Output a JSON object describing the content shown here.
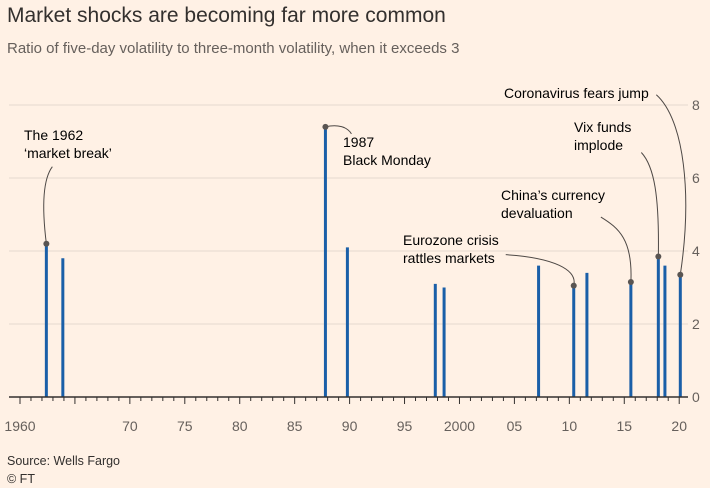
{
  "header": {
    "title": "Market shocks are becoming far more common",
    "subtitle": "Ratio of five-day volatility to three-month volatility, when it exceeds 3"
  },
  "footer": {
    "source": "Source: Wells Fargo",
    "credit": "© FT"
  },
  "colors": {
    "background": "#fff1e5",
    "spike": "#1a5fa8",
    "grid": "#e6d9ce",
    "axis": "#33302e",
    "leader": "#4d4845",
    "dot": "#5a5552"
  },
  "chart_data": {
    "type": "bar",
    "title": "Market shocks are becoming far more common",
    "subtitle": "Ratio of five-day volatility to three-month volatility, when it exceeds 3",
    "xlabel": "",
    "ylabel": "",
    "xlim": [
      1959.0,
      2020.8
    ],
    "ylim": [
      0,
      8
    ],
    "yticks": [
      0,
      2,
      4,
      6,
      8
    ],
    "xticks": [
      {
        "value": 1960,
        "label": "1960"
      },
      {
        "value": 1970,
        "label": "70"
      },
      {
        "value": 1975,
        "label": "75"
      },
      {
        "value": 1980,
        "label": "80"
      },
      {
        "value": 1985,
        "label": "85"
      },
      {
        "value": 1990,
        "label": "90"
      },
      {
        "value": 1995,
        "label": "95"
      },
      {
        "value": 2000,
        "label": "2000"
      },
      {
        "value": 2005,
        "label": "05"
      },
      {
        "value": 2010,
        "label": "10"
      },
      {
        "value": 2015,
        "label": "15"
      },
      {
        "value": 2020,
        "label": "20"
      }
    ],
    "gridlines": "horizontal",
    "series": [
      {
        "name": "Ratio of five-day to three-month volatility",
        "points": [
          {
            "x": 1962.4,
            "y": 4.2
          },
          {
            "x": 1963.9,
            "y": 3.8
          },
          {
            "x": 1987.8,
            "y": 7.4
          },
          {
            "x": 1989.8,
            "y": 4.1
          },
          {
            "x": 1997.8,
            "y": 3.1
          },
          {
            "x": 1998.6,
            "y": 3.0
          },
          {
            "x": 2007.2,
            "y": 3.6
          },
          {
            "x": 2010.4,
            "y": 3.05
          },
          {
            "x": 2011.6,
            "y": 3.4
          },
          {
            "x": 2015.6,
            "y": 3.15
          },
          {
            "x": 2018.1,
            "y": 3.85
          },
          {
            "x": 2018.7,
            "y": 3.6
          },
          {
            "x": 2020.1,
            "y": 3.35
          }
        ]
      }
    ],
    "annotations": [
      {
        "lines": [
          "The 1962",
          "‘market break’"
        ],
        "x": 1962.4,
        "y": 4.2
      },
      {
        "lines": [
          "1987",
          "Black Monday"
        ],
        "x": 1987.8,
        "y": 7.4
      },
      {
        "lines": [
          "Eurozone crisis",
          "rattles markets"
        ],
        "x": 2010.4,
        "y": 3.05
      },
      {
        "lines": [
          "China’s currency",
          "devaluation"
        ],
        "x": 2015.6,
        "y": 3.15
      },
      {
        "lines": [
          "Vix funds",
          "implode"
        ],
        "x": 2018.1,
        "y": 3.85
      },
      {
        "lines": [
          "Coronavirus fears jump"
        ],
        "x": 2020.1,
        "y": 3.35
      }
    ]
  }
}
